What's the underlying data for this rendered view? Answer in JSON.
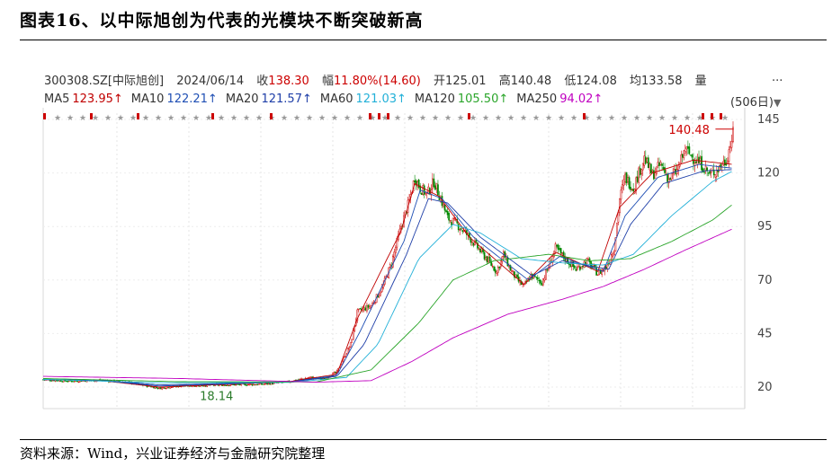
{
  "figure": {
    "title": "图表16、以中际旭创为代表的光模块不断突破新高",
    "source": "资料来源：Wind，兴业证券经济与金融研究院整理"
  },
  "header": {
    "code": "300308.SZ[中际旭创]",
    "date": "2024/06/14",
    "close_label": "收",
    "close": "138.30",
    "change_label": "幅",
    "change": "11.80%(14.60)",
    "open_label": "开",
    "open": "125.01",
    "high_label": "高",
    "high": "140.48",
    "low_label": "低",
    "low": "124.08",
    "avg_label": "均",
    "avg": "133.58",
    "volume_label": "量",
    "more": "...",
    "period": "(506日)"
  },
  "ma_legend": [
    {
      "label": "MA5",
      "value": "123.95↑",
      "color": "#c00000"
    },
    {
      "label": "MA10",
      "value": "122.21↑",
      "color": "#1f4fb4"
    },
    {
      "label": "MA20",
      "value": "121.57↑",
      "color": "#1f3fa8"
    },
    {
      "label": "MA60",
      "value": "121.03↑",
      "color": "#22b0d8"
    },
    {
      "label": "MA120",
      "value": "105.50↑",
      "color": "#2aa52a"
    },
    {
      "label": "MA250",
      "value": "94.02↑",
      "color": "#c000c0"
    }
  ],
  "chart_data": {
    "type": "candlestick",
    "y_ticks": [
      20,
      45,
      70,
      95,
      120,
      145
    ],
    "ylim": [
      15,
      148
    ],
    "trading_days": 506,
    "annotations": [
      {
        "text": "18.14",
        "kind": "low_marker",
        "day": 85,
        "value": 18.14
      },
      {
        "text": "140.48",
        "kind": "high_marker",
        "day": 500,
        "value": 140.48
      }
    ],
    "up_color": "#cc0000",
    "down_color": "#008800",
    "price_path": [
      [
        0,
        23.5
      ],
      [
        20,
        22.8
      ],
      [
        40,
        23.2
      ],
      [
        60,
        22.5
      ],
      [
        85,
        19.5
      ],
      [
        100,
        20.5
      ],
      [
        130,
        21.0
      ],
      [
        160,
        21.3
      ],
      [
        180,
        22.5
      ],
      [
        195,
        24.5
      ],
      [
        205,
        23.8
      ],
      [
        215,
        27
      ],
      [
        225,
        40
      ],
      [
        230,
        55
      ],
      [
        240,
        58
      ],
      [
        248,
        66
      ],
      [
        255,
        78
      ],
      [
        262,
        95
      ],
      [
        268,
        107
      ],
      [
        272,
        118
      ],
      [
        276,
        113
      ],
      [
        281,
        110
      ],
      [
        286,
        116
      ],
      [
        291,
        108
      ],
      [
        296,
        99
      ],
      [
        303,
        96
      ],
      [
        312,
        90
      ],
      [
        322,
        82
      ],
      [
        332,
        74
      ],
      [
        337,
        82
      ],
      [
        342,
        75
      ],
      [
        347,
        70
      ],
      [
        352,
        67
      ],
      [
        357,
        72
      ],
      [
        365,
        69
      ],
      [
        370,
        76
      ],
      [
        375,
        85
      ],
      [
        382,
        80
      ],
      [
        390,
        75
      ],
      [
        398,
        79
      ],
      [
        406,
        73
      ],
      [
        412,
        76
      ],
      [
        418,
        85
      ],
      [
        422,
        108
      ],
      [
        426,
        118
      ],
      [
        432,
        113
      ],
      [
        440,
        127
      ],
      [
        446,
        119
      ],
      [
        452,
        124
      ],
      [
        458,
        117
      ],
      [
        464,
        121
      ],
      [
        470,
        131
      ],
      [
        476,
        127
      ],
      [
        482,
        124
      ],
      [
        488,
        119
      ],
      [
        494,
        122
      ],
      [
        500,
        126
      ],
      [
        505,
        138.3
      ]
    ],
    "ma_series": [
      {
        "name": "MA5",
        "path": [
          [
            0,
            23.5
          ],
          [
            40,
            23.2
          ],
          [
            85,
            20
          ],
          [
            180,
            22.5
          ],
          [
            215,
            26
          ],
          [
            230,
            52
          ],
          [
            262,
            93
          ],
          [
            272,
            115
          ],
          [
            290,
            109
          ],
          [
            312,
            90
          ],
          [
            352,
            68
          ],
          [
            375,
            83
          ],
          [
            406,
            74
          ],
          [
            422,
            104
          ],
          [
            446,
            120
          ],
          [
            476,
            126
          ],
          [
            505,
            124
          ]
        ]
      },
      {
        "name": "MA10",
        "path": [
          [
            0,
            23.5
          ],
          [
            40,
            23.2
          ],
          [
            85,
            20.5
          ],
          [
            180,
            22.4
          ],
          [
            215,
            25.5
          ],
          [
            232,
            46
          ],
          [
            264,
            88
          ],
          [
            276,
            112
          ],
          [
            292,
            108
          ],
          [
            315,
            90
          ],
          [
            355,
            70
          ],
          [
            378,
            81
          ],
          [
            410,
            74
          ],
          [
            426,
            100
          ],
          [
            450,
            118
          ],
          [
            480,
            124
          ],
          [
            505,
            122.2
          ]
        ]
      },
      {
        "name": "MA20",
        "path": [
          [
            0,
            23.5
          ],
          [
            40,
            23.3
          ],
          [
            85,
            21
          ],
          [
            180,
            22.3
          ],
          [
            215,
            25
          ],
          [
            235,
            40
          ],
          [
            266,
            82
          ],
          [
            282,
            108
          ],
          [
            296,
            106
          ],
          [
            320,
            90
          ],
          [
            358,
            72
          ],
          [
            380,
            79
          ],
          [
            414,
            75
          ],
          [
            430,
            96
          ],
          [
            454,
            115
          ],
          [
            484,
            121
          ],
          [
            505,
            121.6
          ]
        ]
      },
      {
        "name": "MA60",
        "path": [
          [
            0,
            23.6
          ],
          [
            85,
            22
          ],
          [
            180,
            22.2
          ],
          [
            222,
            24.5
          ],
          [
            245,
            40
          ],
          [
            275,
            80
          ],
          [
            300,
            96
          ],
          [
            320,
            92
          ],
          [
            350,
            80
          ],
          [
            380,
            78
          ],
          [
            410,
            77
          ],
          [
            432,
            82
          ],
          [
            460,
            100
          ],
          [
            490,
            116
          ],
          [
            505,
            121
          ]
        ]
      },
      {
        "name": "MA120",
        "path": [
          [
            0,
            24
          ],
          [
            100,
            22.5
          ],
          [
            200,
            22.4
          ],
          [
            240,
            28
          ],
          [
            275,
            50
          ],
          [
            300,
            70
          ],
          [
            330,
            79
          ],
          [
            370,
            82
          ],
          [
            400,
            79
          ],
          [
            430,
            80
          ],
          [
            460,
            88
          ],
          [
            490,
            98
          ],
          [
            505,
            105.5
          ]
        ]
      },
      {
        "name": "MA250",
        "path": [
          [
            0,
            25
          ],
          [
            100,
            24
          ],
          [
            200,
            22.3
          ],
          [
            240,
            23
          ],
          [
            270,
            32
          ],
          [
            300,
            43
          ],
          [
            340,
            54
          ],
          [
            380,
            61
          ],
          [
            410,
            67
          ],
          [
            440,
            75
          ],
          [
            470,
            84
          ],
          [
            505,
            94
          ]
        ]
      }
    ]
  }
}
